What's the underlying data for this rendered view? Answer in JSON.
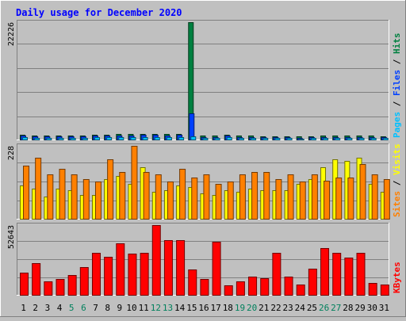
{
  "chart_data": [
    {
      "type": "bar",
      "panel": "hits-files-pages",
      "title": "Daily usage for December 2020",
      "ymax_label": "22226",
      "ylim": [
        0,
        22226
      ],
      "grid": true,
      "legend_label": {
        "pages": "Pages",
        "files": "Files",
        "hits": "Hits",
        "sep": " / "
      },
      "series": [
        {
          "name": "Hits",
          "color": "#008040",
          "values": [
            950,
            720,
            700,
            700,
            700,
            700,
            900,
            900,
            1000,
            1000,
            1100,
            1100,
            1000,
            1100,
            22226,
            700,
            700,
            900,
            700,
            700,
            600,
            600,
            600,
            600,
            600,
            700,
            700,
            700,
            700,
            700,
            600
          ]
        },
        {
          "name": "Files",
          "color": "#0040ff",
          "values": [
            800,
            600,
            600,
            600,
            600,
            600,
            700,
            700,
            800,
            800,
            900,
            900,
            800,
            900,
            5000,
            500,
            500,
            700,
            500,
            500,
            400,
            400,
            400,
            300,
            400,
            500,
            500,
            500,
            500,
            500,
            400
          ]
        },
        {
          "name": "Pages",
          "color": "#00c0ff",
          "values": [
            450,
            350,
            350,
            350,
            350,
            350,
            400,
            400,
            450,
            450,
            500,
            500,
            450,
            500,
            600,
            300,
            300,
            400,
            300,
            300,
            250,
            250,
            250,
            200,
            250,
            300,
            300,
            300,
            300,
            300,
            250
          ]
        }
      ]
    },
    {
      "type": "bar",
      "panel": "visits-sites",
      "ymax_label": "228",
      "ylim": [
        0,
        228
      ],
      "grid": true,
      "legend_label": {
        "sites": "Sites",
        "visits": "Visits",
        "sep": " / "
      },
      "series": [
        {
          "name": "Visits",
          "color": "#ffff00",
          "values": [
            105,
            95,
            70,
            95,
            90,
            75,
            75,
            125,
            135,
            110,
            160,
            85,
            90,
            105,
            98,
            80,
            75,
            90,
            85,
            95,
            90,
            88,
            90,
            110,
            125,
            160,
            185,
            180,
            192,
            110,
            85
          ]
        },
        {
          "name": "Sites",
          "color": "#ff8000",
          "values": [
            165,
            190,
            138,
            155,
            140,
            125,
            117,
            185,
            145,
            228,
            147,
            140,
            117,
            155,
            130,
            140,
            110,
            117,
            140,
            145,
            145,
            125,
            140,
            117,
            140,
            120,
            130,
            130,
            170,
            140,
            125
          ]
        }
      ]
    },
    {
      "type": "bar",
      "panel": "kbytes",
      "ymax_label": "52643",
      "ylim": [
        0,
        52643
      ],
      "grid": true,
      "legend_label": {
        "kbytes": "KBytes"
      },
      "series": [
        {
          "name": "KBytes",
          "color": "#ff0000",
          "values": [
            17000,
            24000,
            10000,
            12000,
            15000,
            21000,
            32000,
            29000,
            39000,
            31000,
            32000,
            52643,
            41000,
            41500,
            19000,
            12000,
            40000,
            7000,
            10000,
            13500,
            12500,
            32000,
            14000,
            8000,
            20000,
            35000,
            31500,
            28000,
            31500,
            9000,
            8000
          ]
        }
      ]
    }
  ],
  "x_labels": {
    "days": [
      "1",
      "2",
      "3",
      "4",
      "5",
      "6",
      "7",
      "8",
      "9",
      "10",
      "11",
      "12",
      "13",
      "14",
      "15",
      "16",
      "17",
      "18",
      "19",
      "20",
      "21",
      "22",
      "23",
      "24",
      "25",
      "26",
      "27",
      "28",
      "29",
      "30",
      "31"
    ],
    "weekend_days": [
      5,
      6,
      12,
      13,
      19,
      20,
      26,
      27
    ],
    "weekday_color": "#000000",
    "weekend_color": "#00805c"
  },
  "colors": {
    "background": "#c0c0c0",
    "title": "#0000ff",
    "grid": "#808080",
    "panel_bg": "#c0c0c0"
  }
}
